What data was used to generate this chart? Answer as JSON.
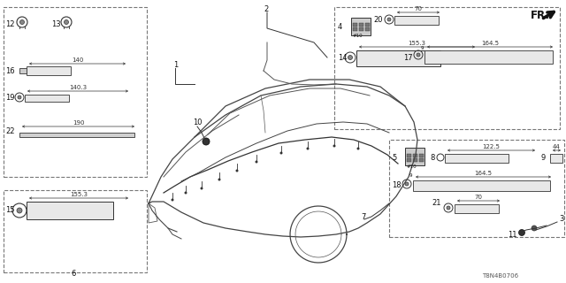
{
  "bg_color": "#ffffff",
  "lc": "#333333",
  "part_code": "T8N4B0706",
  "fs_label": 6.0,
  "fs_dim": 5.0,
  "fs_small": 4.5
}
